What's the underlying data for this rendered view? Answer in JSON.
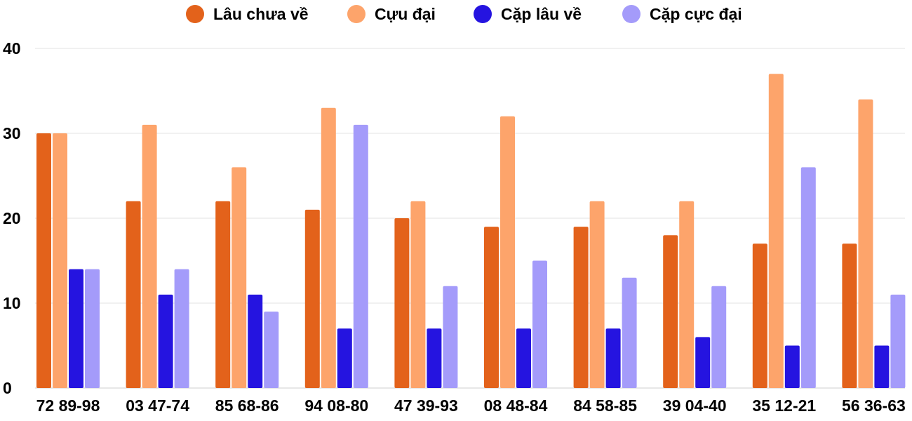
{
  "chart_data": {
    "type": "bar",
    "categories": [
      "72 89-98",
      "03 47-74",
      "85 68-86",
      "94 08-80",
      "47 39-93",
      "08 48-84",
      "84 58-85",
      "39 04-40",
      "35 12-21",
      "56 36-63"
    ],
    "series": [
      {
        "name": "Lâu chưa về",
        "color": "#e3621b",
        "values": [
          30,
          22,
          22,
          21,
          20,
          19,
          19,
          18,
          17,
          17
        ]
      },
      {
        "name": "Cựu đại",
        "color": "#fda46b",
        "values": [
          30,
          31,
          26,
          33,
          22,
          32,
          22,
          22,
          37,
          34
        ]
      },
      {
        "name": "Cặp lâu về",
        "color": "#2514e0",
        "values": [
          14,
          11,
          11,
          7,
          7,
          7,
          7,
          6,
          5,
          5
        ]
      },
      {
        "name": "Cặp cực đại",
        "color": "#a49bfa",
        "values": [
          14,
          14,
          9,
          31,
          12,
          15,
          13,
          12,
          26,
          11
        ]
      }
    ],
    "yticks": [
      0,
      10,
      20,
      30,
      40
    ],
    "ylim": [
      0,
      40
    ],
    "grid": true,
    "legend_position": "top"
  }
}
